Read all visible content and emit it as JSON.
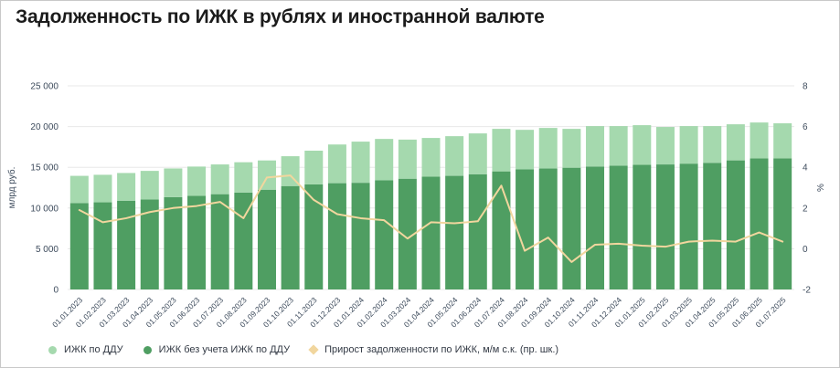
{
  "title": "Задолженность по ИЖК в рублях и иностранной валюте",
  "colors": {
    "light_green": "#a5d9ae",
    "dark_green": "#4f9e62",
    "line_yellow": "#f1d69e",
    "grid": "#e8e8e8",
    "axis_text": "#3d4b5c",
    "title_text": "#1b1b1b",
    "border": "#c9c9c9",
    "background": "#ffffff"
  },
  "chart_data": {
    "type": "bar",
    "subtype": "stacked-bars-with-line",
    "title": "Задолженность по ИЖК в рублях и иностранной валюте",
    "categories": [
      "01.01.2023",
      "01.02.2023",
      "01.03.2023",
      "01.04.2023",
      "01.05.2023",
      "01.06.2023",
      "01.07.2023",
      "01.08.2023",
      "01.09.2023",
      "01.10.2023",
      "01.11.2023",
      "01.12.2023",
      "01.01.2024",
      "01.02.2024",
      "01.03.2024",
      "01.04.2024",
      "01.05.2024",
      "01.06.2024",
      "01.07.2024",
      "01.08.2024",
      "01.09.2024",
      "01.10.2024",
      "01.11.2024",
      "01.12.2024",
      "01.01.2025",
      "01.02.2025",
      "01.03.2025",
      "01.04.2025",
      "01.05.2025",
      "01.06.2025",
      "01.07.2025"
    ],
    "series": [
      {
        "name": "ИЖК по ДДУ",
        "type": "bar",
        "stack_position": "top",
        "axis": "left",
        "color_key": "light_green",
        "values": [
          3350,
          3380,
          3400,
          3510,
          3530,
          3590,
          3650,
          3720,
          3590,
          3660,
          4140,
          4750,
          5050,
          5080,
          4800,
          4750,
          4870,
          5010,
          5220,
          4850,
          4980,
          4770,
          4960,
          4860,
          4870,
          4600,
          4610,
          4510,
          4430,
          4400,
          4300
        ]
      },
      {
        "name": "ИЖК без учета ИЖК по ДДУ",
        "type": "bar",
        "stack_position": "bottom",
        "axis": "left",
        "color_key": "dark_green",
        "values": [
          10600,
          10700,
          10900,
          11050,
          11330,
          11500,
          11700,
          11900,
          12250,
          12700,
          12900,
          13050,
          13100,
          13400,
          13600,
          13850,
          13950,
          14150,
          14500,
          14750,
          14850,
          14950,
          15100,
          15200,
          15300,
          15350,
          15450,
          15550,
          15850,
          16100,
          16100
        ]
      },
      {
        "name": "Прирост задолженности по ИЖК, м/м с.к. (пр. шк.)",
        "type": "line",
        "axis": "right",
        "color_key": "line_yellow",
        "values": [
          1.9,
          1.3,
          1.5,
          1.8,
          2.0,
          2.1,
          2.3,
          1.5,
          3.5,
          3.6,
          2.4,
          1.7,
          1.5,
          1.4,
          0.5,
          1.3,
          1.25,
          1.35,
          3.1,
          -0.1,
          0.55,
          -0.65,
          0.2,
          0.25,
          0.15,
          0.1,
          0.35,
          0.4,
          0.35,
          0.8,
          0.35
        ]
      }
    ],
    "left_axis": {
      "title": "млрд руб.",
      "min": 0,
      "max": 25000,
      "ticks": [
        0,
        5000,
        10000,
        15000,
        20000,
        25000
      ],
      "tick_labels": [
        "0",
        "5 000",
        "10 000",
        "15 000",
        "20 000",
        "25 000"
      ]
    },
    "right_axis": {
      "title": "%",
      "min": -2,
      "max": 8,
      "ticks": [
        -2,
        0,
        2,
        4,
        6,
        8
      ],
      "tick_labels": [
        "-2",
        "0",
        "2",
        "4",
        "6",
        "8"
      ]
    },
    "grid": true,
    "legend_position": "bottom"
  },
  "legend": {
    "items": [
      {
        "marker": "circle",
        "color_key": "light_green"
      },
      {
        "marker": "circle",
        "color_key": "dark_green"
      },
      {
        "marker": "diamond",
        "color_key": "line_yellow"
      }
    ]
  }
}
